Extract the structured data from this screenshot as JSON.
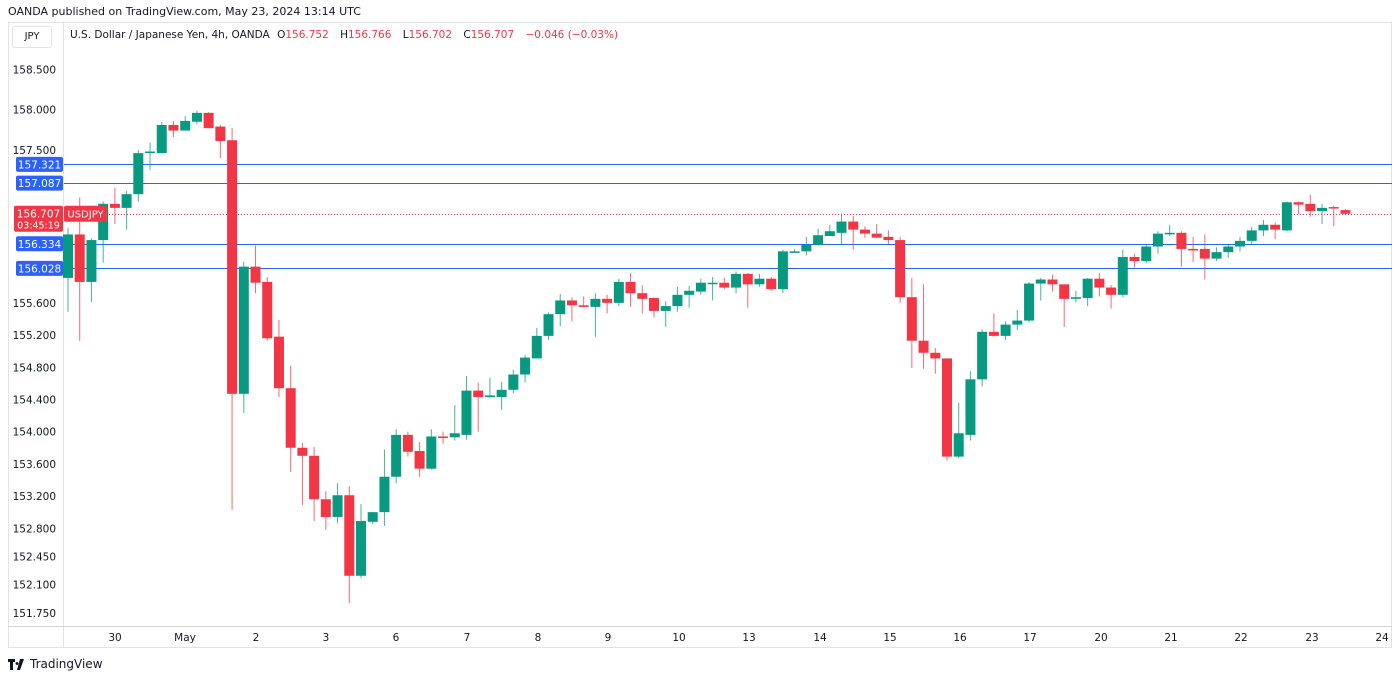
{
  "published": "OANDA published on TradingView.com, May 23, 2024 13:14 UTC",
  "currency_button": "JPY",
  "legend": {
    "title": "U.S. Dollar / Japanese Yen, 4h, OANDA",
    "o_label": "O",
    "o": "156.752",
    "h_label": "H",
    "h": "156.766",
    "l_label": "L",
    "l": "156.702",
    "c_label": "C",
    "c": "156.707",
    "change": "−0.046 (−0.03%)"
  },
  "logo_text": "TradingView",
  "colors": {
    "up": "#089981",
    "down": "#f23645",
    "level": "#2962ff",
    "axis_text": "#131722"
  },
  "chart_data": {
    "type": "candlestick",
    "symbol": "USDJPY",
    "interval": "4h",
    "ylim": [
      151.75,
      158.5
    ],
    "price_ticks": [
      "158.500",
      "158.000",
      "157.500",
      "155.600",
      "155.200",
      "154.800",
      "154.400",
      "154.000",
      "153.600",
      "153.200",
      "152.800",
      "152.450",
      "152.100",
      "151.750"
    ],
    "time_ticks": [
      "30",
      "May",
      "2",
      "3",
      "6",
      "7",
      "8",
      "9",
      "10",
      "13",
      "14",
      "15",
      "16",
      "17",
      "20",
      "21",
      "22",
      "23",
      "24"
    ],
    "horizontal_levels": [
      "157.321",
      "157.087",
      "156.334",
      "156.028"
    ],
    "last_price": "156.707",
    "countdown": "03:45:19",
    "ohlc": [
      [
        155.91,
        156.53,
        155.49,
        156.45
      ],
      [
        156.45,
        156.91,
        155.13,
        155.86
      ],
      [
        155.86,
        156.4,
        155.61,
        156.38
      ],
      [
        156.38,
        156.86,
        156.1,
        156.83
      ],
      [
        156.83,
        157.03,
        156.58,
        156.78
      ],
      [
        156.78,
        156.99,
        156.51,
        156.95
      ],
      [
        156.95,
        157.5,
        156.86,
        157.46
      ],
      [
        157.46,
        157.59,
        157.25,
        157.48
      ],
      [
        157.46,
        157.85,
        157.46,
        157.81
      ],
      [
        157.81,
        157.86,
        157.66,
        157.74
      ],
      [
        157.74,
        157.92,
        157.74,
        157.86
      ],
      [
        157.85,
        157.99,
        157.82,
        157.96
      ],
      [
        157.96,
        157.97,
        157.77,
        157.77
      ],
      [
        157.79,
        157.81,
        157.4,
        157.61
      ],
      [
        157.62,
        157.77,
        153.03,
        154.47
      ],
      [
        154.47,
        156.11,
        154.23,
        156.05
      ],
      [
        156.05,
        156.31,
        155.72,
        155.85
      ],
      [
        155.86,
        155.92,
        155.13,
        155.16
      ],
      [
        155.18,
        155.39,
        154.43,
        154.54
      ],
      [
        154.54,
        154.82,
        153.5,
        153.8
      ],
      [
        153.8,
        153.86,
        153.09,
        153.7
      ],
      [
        153.7,
        153.81,
        152.89,
        153.16
      ],
      [
        153.16,
        153.26,
        152.78,
        152.94
      ],
      [
        152.94,
        153.36,
        152.86,
        153.21
      ],
      [
        153.21,
        153.32,
        151.87,
        152.21
      ],
      [
        152.21,
        153.1,
        152.18,
        152.89
      ],
      [
        152.88,
        153.0,
        152.85,
        153.0
      ],
      [
        153.0,
        153.78,
        152.83,
        153.44
      ],
      [
        153.44,
        154.03,
        153.36,
        153.96
      ],
      [
        153.96,
        154.0,
        153.69,
        153.75
      ],
      [
        153.76,
        153.87,
        153.44,
        153.54
      ],
      [
        153.54,
        154.03,
        153.53,
        153.94
      ],
      [
        153.94,
        154.0,
        153.85,
        153.93
      ],
      [
        153.93,
        154.33,
        153.89,
        153.98
      ],
      [
        153.96,
        154.69,
        153.9,
        154.51
      ],
      [
        154.51,
        154.61,
        154.0,
        154.43
      ],
      [
        154.43,
        154.67,
        154.42,
        154.45
      ],
      [
        154.43,
        154.62,
        154.27,
        154.52
      ],
      [
        154.52,
        154.77,
        154.48,
        154.71
      ],
      [
        154.71,
        154.95,
        154.61,
        154.92
      ],
      [
        154.91,
        155.29,
        154.91,
        155.19
      ],
      [
        155.19,
        155.48,
        155.14,
        155.46
      ],
      [
        155.46,
        155.71,
        155.31,
        155.63
      ],
      [
        155.63,
        155.67,
        155.37,
        155.57
      ],
      [
        155.57,
        155.68,
        155.55,
        155.55
      ],
      [
        155.55,
        155.72,
        155.18,
        155.65
      ],
      [
        155.65,
        155.7,
        155.47,
        155.6
      ],
      [
        155.6,
        155.9,
        155.56,
        155.86
      ],
      [
        155.86,
        155.97,
        155.55,
        155.72
      ],
      [
        155.72,
        155.82,
        155.47,
        155.65
      ],
      [
        155.66,
        155.67,
        155.42,
        155.5
      ],
      [
        155.5,
        155.62,
        155.3,
        155.56
      ],
      [
        155.56,
        155.8,
        155.49,
        155.7
      ],
      [
        155.7,
        155.81,
        155.54,
        155.75
      ],
      [
        155.74,
        155.9,
        155.7,
        155.85
      ],
      [
        155.84,
        155.92,
        155.63,
        155.85
      ],
      [
        155.85,
        155.91,
        155.77,
        155.79
      ],
      [
        155.79,
        155.99,
        155.72,
        155.96
      ],
      [
        155.96,
        155.97,
        155.54,
        155.83
      ],
      [
        155.83,
        155.96,
        155.8,
        155.9
      ],
      [
        155.9,
        155.92,
        155.75,
        155.77
      ],
      [
        155.77,
        156.26,
        155.72,
        156.24
      ],
      [
        156.23,
        156.27,
        156.22,
        156.24
      ],
      [
        156.24,
        156.42,
        156.19,
        156.32
      ],
      [
        156.32,
        156.52,
        156.31,
        156.44
      ],
      [
        156.43,
        156.57,
        156.43,
        156.49
      ],
      [
        156.47,
        156.71,
        156.32,
        156.61
      ],
      [
        156.61,
        156.68,
        156.26,
        156.51
      ],
      [
        156.51,
        156.55,
        156.41,
        156.46
      ],
      [
        156.46,
        156.58,
        156.41,
        156.41
      ],
      [
        156.42,
        156.5,
        156.33,
        156.38
      ],
      [
        156.38,
        156.42,
        155.6,
        155.67
      ],
      [
        155.67,
        155.91,
        154.79,
        155.13
      ],
      [
        155.13,
        155.83,
        154.78,
        154.98
      ],
      [
        154.98,
        155.04,
        154.72,
        154.91
      ],
      [
        154.91,
        154.91,
        153.64,
        153.69
      ],
      [
        153.69,
        154.36,
        153.67,
        153.98
      ],
      [
        153.96,
        154.75,
        153.89,
        154.65
      ],
      [
        154.65,
        155.27,
        154.56,
        155.24
      ],
      [
        155.24,
        155.47,
        155.18,
        155.19
      ],
      [
        155.19,
        155.37,
        155.14,
        155.33
      ],
      [
        155.33,
        155.51,
        155.26,
        155.38
      ],
      [
        155.38,
        155.86,
        155.36,
        155.84
      ],
      [
        155.84,
        155.91,
        155.63,
        155.89
      ],
      [
        155.89,
        155.95,
        155.74,
        155.83
      ],
      [
        155.83,
        155.83,
        155.3,
        155.65
      ],
      [
        155.65,
        155.75,
        155.61,
        155.67
      ],
      [
        155.66,
        155.91,
        155.56,
        155.9
      ],
      [
        155.9,
        155.97,
        155.68,
        155.79
      ],
      [
        155.79,
        155.82,
        155.53,
        155.7
      ],
      [
        155.7,
        156.26,
        155.67,
        156.17
      ],
      [
        156.17,
        156.21,
        156.04,
        156.12
      ],
      [
        156.12,
        156.33,
        156.09,
        156.3
      ],
      [
        156.3,
        156.49,
        156.21,
        156.46
      ],
      [
        156.46,
        156.57,
        156.43,
        156.47
      ],
      [
        156.47,
        156.49,
        156.05,
        156.27
      ],
      [
        156.27,
        156.42,
        156.11,
        156.26
      ],
      [
        156.27,
        156.45,
        155.89,
        156.15
      ],
      [
        156.15,
        156.29,
        156.12,
        156.23
      ],
      [
        156.23,
        156.33,
        156.16,
        156.3
      ],
      [
        156.3,
        156.42,
        156.24,
        156.37
      ],
      [
        156.37,
        156.54,
        156.32,
        156.5
      ],
      [
        156.5,
        156.63,
        156.43,
        156.57
      ],
      [
        156.57,
        156.6,
        156.39,
        156.51
      ],
      [
        156.5,
        156.86,
        156.49,
        156.85
      ],
      [
        156.85,
        156.86,
        156.7,
        156.82
      ],
      [
        156.83,
        156.94,
        156.67,
        156.74
      ],
      [
        156.74,
        156.83,
        156.58,
        156.78
      ],
      [
        156.79,
        156.81,
        156.55,
        156.78
      ],
      [
        156.752,
        156.766,
        156.702,
        156.707
      ]
    ]
  }
}
